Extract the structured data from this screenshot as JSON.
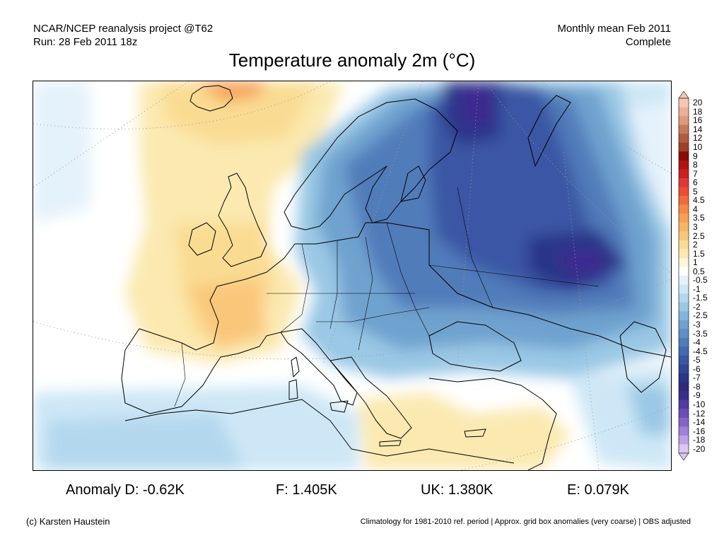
{
  "header": {
    "source_line": "NCAR/NCEP reanalysis project @T62",
    "run_line": "Run: 28 Feb 2011 18z",
    "period_line": "Monthly mean Feb 2011",
    "status_line": "Complete"
  },
  "title": "Temperature anomaly 2m (°C)",
  "legend": {
    "labels": [
      "20",
      "18",
      "16",
      "14",
      "12",
      "10",
      "9",
      "8",
      "7",
      "6",
      "5",
      "4.5",
      "4",
      "3.5",
      "3",
      "2.5",
      "2",
      "1.5",
      "1",
      "0.5",
      "-0.5",
      "-1",
      "-1.5",
      "-2",
      "-2.5",
      "-3",
      "-3.5",
      "-4",
      "-4.5",
      "-5",
      "-6",
      "-7",
      "-8",
      "-9",
      "-10",
      "-12",
      "-14",
      "-16",
      "-18",
      "-20"
    ],
    "colors": [
      "#f4c8b4",
      "#eab097",
      "#de9a7e",
      "#c8785a",
      "#b25c3f",
      "#9b4128",
      "#8c0a0a",
      "#b01313",
      "#cc2020",
      "#e03636",
      "#ea4d34",
      "#f16a3c",
      "#f58848",
      "#f6a055",
      "#f8b565",
      "#f9c77a",
      "#fadb92",
      "#fbe9b0",
      "#fdf6dc",
      "#ffffff",
      "#e4f2fb",
      "#cde7f6",
      "#b3d8ee",
      "#9ac8e5",
      "#82b5da",
      "#6fa2cf",
      "#5f8fc4",
      "#517cba",
      "#4569b0",
      "#3a56a4",
      "#324596",
      "#2c3488",
      "#2d2a7c",
      "#3d2c90",
      "#5339a5",
      "#6b4db8",
      "#8564c8",
      "#a080d8",
      "#bea0e6",
      "#dcc6f2"
    ]
  },
  "stats": {
    "anomaly_d": "Anomaly D: -0.62K",
    "f": "F: 1.405K",
    "uk": "UK: 1.380K",
    "e": "E: 0.079K"
  },
  "footer": {
    "copyright": "(c) Karsten Haustein",
    "note": "Climatology for 1981-2010 ref. period | Approx. grid box anomalies (very coarse) | OBS adjusted"
  }
}
